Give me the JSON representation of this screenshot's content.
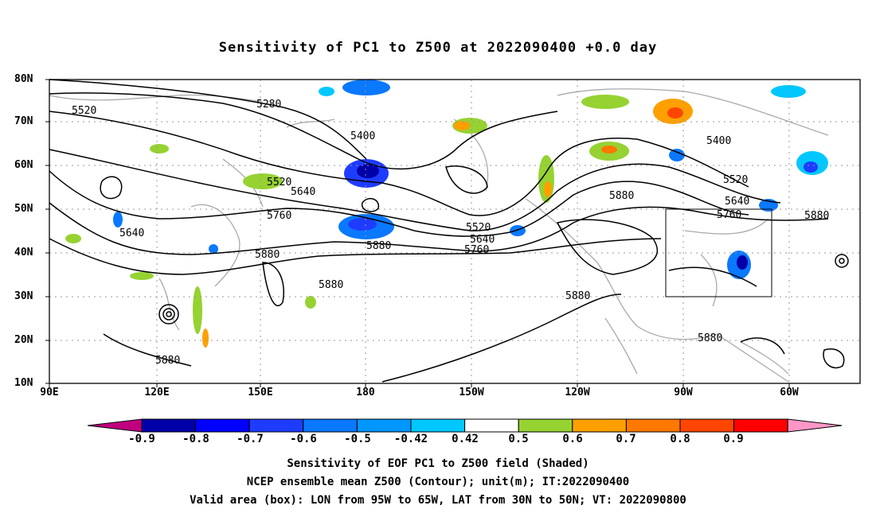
{
  "title": "Sensitivity of PC1 to Z500 at 2022090400 +0.0 day",
  "axes": {
    "lat_labels": [
      "80N",
      "70N",
      "60N",
      "50N",
      "40N",
      "30N",
      "20N",
      "10N"
    ],
    "lon_labels": [
      "90E",
      "120E",
      "150E",
      "180",
      "150W",
      "120W",
      "90W",
      "60W"
    ]
  },
  "contour_labels": [
    "5280",
    "5520",
    "5400",
    "5520",
    "5640",
    "5760",
    "5880",
    "5520",
    "5640",
    "5760",
    "5880",
    "5880",
    "5880",
    "5880",
    "5400",
    "5520",
    "5640",
    "5760",
    "5880",
    "5880",
    "5880",
    "5640"
  ],
  "colorbar": {
    "labels": [
      "-0.9",
      "-0.8",
      "-0.7",
      "-0.6",
      "-0.5",
      "-0.42",
      "0.42",
      "0.5",
      "0.6",
      "0.7",
      "0.8",
      "0.9"
    ],
    "colors": [
      "#c0007f",
      "#0000a8",
      "#0000ff",
      "#1e3cff",
      "#0a78ff",
      "#0096ff",
      "#00c8ff",
      "#ffffff",
      "#96d232",
      "#ffa000",
      "#ff7800",
      "#ff4600",
      "#ff0000",
      "#ff96c8"
    ]
  },
  "box_caption": "Valid area (box): LON from 95W to 65W, LAT from 30N to 50N; VT: 2022090800",
  "footer": {
    "line1": "Sensitivity of EOF PC1 to Z500 field (Shaded)",
    "line2": "NCEP ensemble mean Z500 (Contour); unit(m); IT:2022090400",
    "line3": "Valid area (box): LON from 95W to 65W, LAT from 30N to 50N; VT: 2022090800"
  }
}
